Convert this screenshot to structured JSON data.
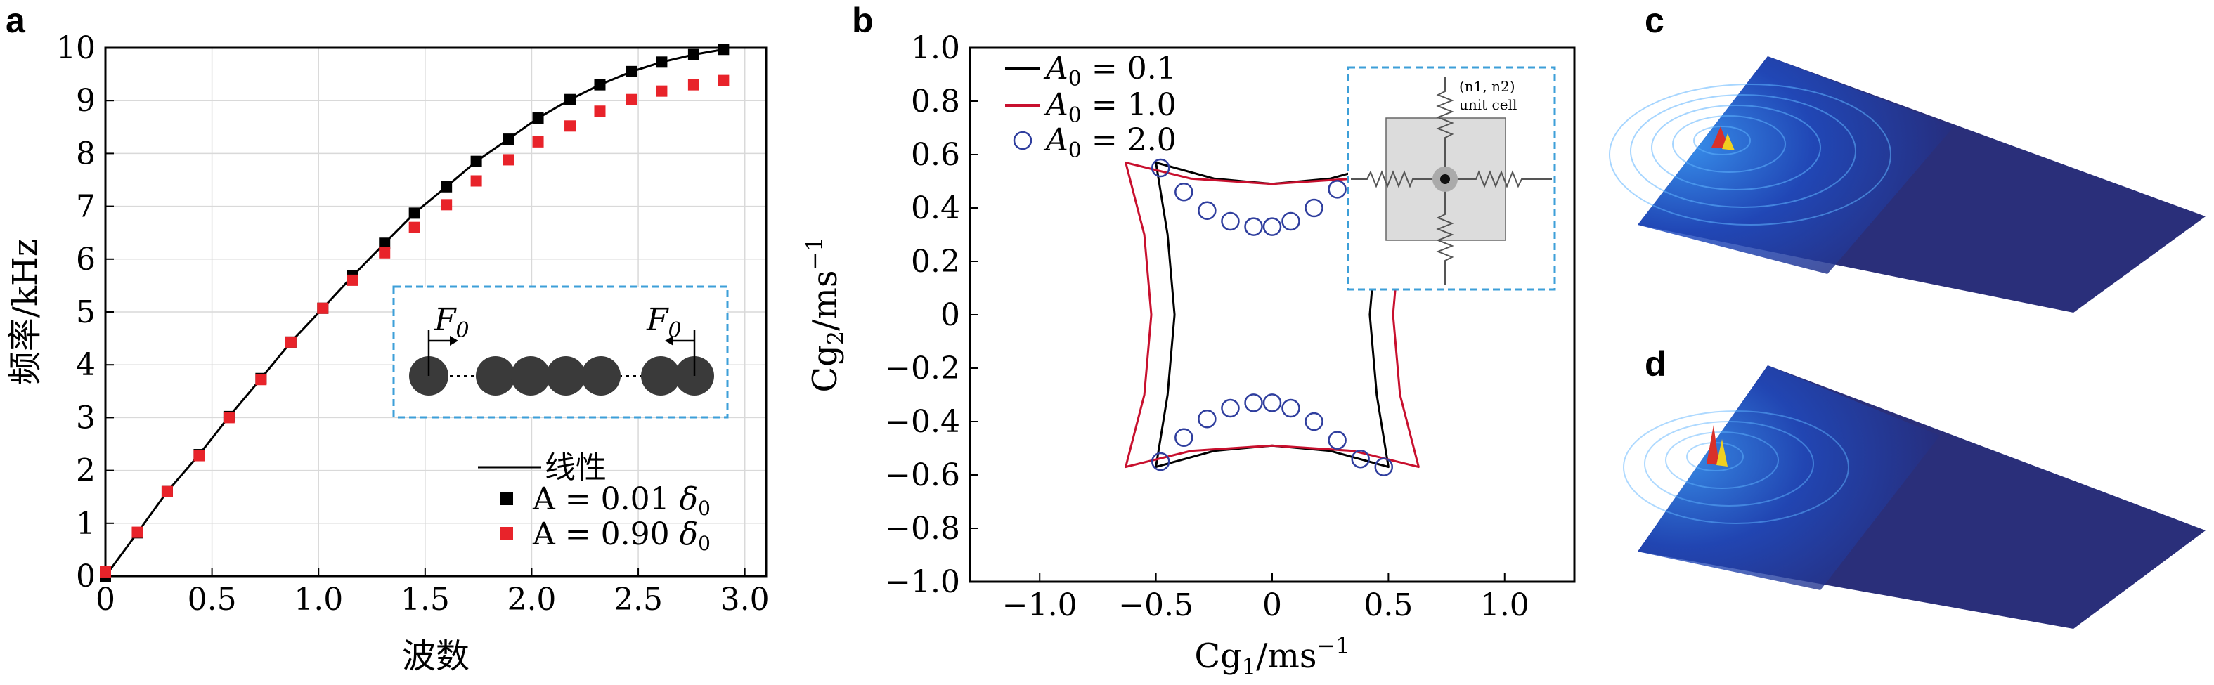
{
  "panels": {
    "a": "a",
    "b": "b",
    "c": "c",
    "d": "d"
  },
  "chart_data": [
    {
      "type": "scatter",
      "panel": "a",
      "xlabel": "波数",
      "ylabel": "频率/kHz",
      "xlim": [
        0,
        3.1
      ],
      "ylim": [
        0,
        10
      ],
      "xticks": [
        "0",
        "0.5",
        "1.0",
        "1.5",
        "2.0",
        "2.5",
        "3.0"
      ],
      "yticks": [
        "0",
        "1",
        "2",
        "3",
        "4",
        "5",
        "6",
        "7",
        "8",
        "9",
        "10"
      ],
      "grid": true,
      "legend_position": "bottom-right",
      "series": [
        {
          "name": "线性",
          "style": "line",
          "color": "#000000",
          "x": [
            0,
            0.15,
            0.29,
            0.44,
            0.58,
            0.73,
            0.87,
            1.02,
            1.16,
            1.31,
            1.45,
            1.6,
            1.74,
            1.89,
            2.03,
            2.18,
            2.32,
            2.47,
            2.61,
            2.76,
            2.9
          ],
          "y": [
            0,
            0.82,
            1.6,
            2.3,
            3.02,
            3.74,
            4.43,
            5.07,
            5.68,
            6.3,
            6.87,
            7.37,
            7.85,
            8.27,
            8.67,
            9.02,
            9.3,
            9.55,
            9.73,
            9.87,
            9.97
          ]
        },
        {
          "name": "A = 0.01 δ0",
          "style": "square",
          "color": "#000000",
          "x": [
            0,
            0.15,
            0.29,
            0.44,
            0.58,
            0.73,
            0.87,
            1.02,
            1.16,
            1.31,
            1.45,
            1.6,
            1.74,
            1.89,
            2.03,
            2.18,
            2.32,
            2.47,
            2.61,
            2.76,
            2.9
          ],
          "y": [
            0,
            0.82,
            1.6,
            2.3,
            3.02,
            3.74,
            4.43,
            5.07,
            5.68,
            6.3,
            6.87,
            7.37,
            7.85,
            8.27,
            8.67,
            9.02,
            9.3,
            9.55,
            9.73,
            9.87,
            9.97
          ]
        },
        {
          "name": "A = 0.90 δ0",
          "style": "square",
          "color": "#e8232a",
          "x": [
            0,
            0.15,
            0.29,
            0.44,
            0.58,
            0.73,
            0.87,
            1.02,
            1.16,
            1.31,
            1.45,
            1.6,
            1.74,
            1.89,
            2.03,
            2.18,
            2.32,
            2.47,
            2.61,
            2.76,
            2.9
          ],
          "y": [
            0.08,
            0.83,
            1.6,
            2.28,
            3.0,
            3.72,
            4.43,
            5.07,
            5.6,
            6.12,
            6.6,
            7.03,
            7.48,
            7.88,
            8.22,
            8.52,
            8.8,
            9.02,
            9.18,
            9.3,
            9.38
          ]
        }
      ],
      "inset": {
        "force_label": "F",
        "force_sub": "0"
      }
    },
    {
      "type": "line",
      "panel": "b",
      "xlabel": "Cg1/ms−1",
      "ylabel": "Cg2/ms−1",
      "xlim": [
        -1.3,
        1.3
      ],
      "ylim": [
        -1.0,
        1.0
      ],
      "xticks": [
        "−1.0",
        "−0.5",
        "0",
        "0.5",
        "1.0"
      ],
      "yticks": [
        "1.0",
        "0.8",
        "0.6",
        "0.4",
        "0.2",
        "0",
        "−0.2",
        "−0.4",
        "−0.6",
        "−0.8",
        "−1.0"
      ],
      "grid": false,
      "legend_position": "top-left",
      "series": [
        {
          "name": "A0 = 0.1",
          "color": "#000000",
          "x": [
            -0.5,
            -0.25,
            0,
            0.25,
            0.5,
            0.45,
            0.42,
            0.45,
            0.5,
            0.25,
            0,
            -0.25,
            -0.5,
            -0.45,
            -0.42,
            -0.45
          ],
          "y": [
            0.57,
            0.51,
            0.49,
            0.51,
            0.57,
            0.3,
            0,
            -0.3,
            -0.57,
            -0.51,
            -0.49,
            -0.51,
            -0.57,
            -0.3,
            0,
            0.3
          ]
        },
        {
          "name": "A0 = 1.0",
          "color": "#c8102e",
          "x": [
            -0.63,
            -0.35,
            0,
            0.35,
            0.63,
            0.55,
            0.52,
            0.55,
            0.63,
            0.35,
            0,
            -0.35,
            -0.63,
            -0.55,
            -0.52,
            -0.55
          ],
          "y": [
            0.57,
            0.51,
            0.49,
            0.51,
            0.57,
            0.3,
            0,
            -0.3,
            -0.57,
            -0.51,
            -0.49,
            -0.51,
            -0.57,
            -0.3,
            0,
            0.3
          ]
        },
        {
          "name": "A0 = 2.0",
          "color": "#2f3e9e",
          "style": "circle",
          "x": [
            -0.48,
            -0.38,
            -0.28,
            -0.18,
            -0.08,
            0,
            0.08,
            0.18,
            0.28,
            -0.48,
            -0.38,
            -0.28,
            -0.18,
            -0.08,
            0,
            0.08,
            0.18,
            0.28,
            0.38,
            0.48
          ],
          "y": [
            0.55,
            0.46,
            0.39,
            0.35,
            0.33,
            0.33,
            0.35,
            0.4,
            0.47,
            -0.55,
            -0.46,
            -0.39,
            -0.35,
            -0.33,
            -0.33,
            -0.35,
            -0.4,
            -0.47,
            -0.54,
            -0.57
          ]
        }
      ],
      "inset": {
        "cell_label": "(n1, n2)",
        "unit_label": "unit cell"
      }
    }
  ]
}
